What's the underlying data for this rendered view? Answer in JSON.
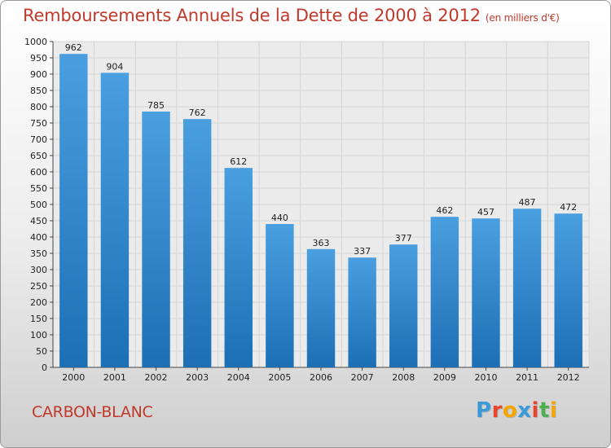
{
  "chart_data": {
    "type": "bar",
    "title": "Remboursements Annuels de la Dette de 2000 à 2012",
    "subtitle": "(en milliers d'€)",
    "categories": [
      "2000",
      "2001",
      "2002",
      "2003",
      "2004",
      "2005",
      "2006",
      "2007",
      "2008",
      "2009",
      "2010",
      "2011",
      "2012"
    ],
    "values": [
      962,
      904,
      785,
      762,
      612,
      440,
      363,
      337,
      377,
      462,
      457,
      487,
      472
    ],
    "ylim": [
      0,
      1000
    ],
    "yticks": [
      0,
      50,
      100,
      150,
      200,
      250,
      300,
      350,
      400,
      450,
      500,
      550,
      600,
      650,
      700,
      750,
      800,
      850,
      900,
      950,
      1000
    ],
    "grid": true,
    "bar_color": "#4a9fe0",
    "bar_color_dark": "#1d6fb5"
  },
  "footer": {
    "commune": "CARBON-BLANC",
    "logo": [
      "P",
      "r",
      "o",
      "x",
      "i",
      "t",
      "i"
    ],
    "logo_colors": [
      "#3a9ad9",
      "#e8462c",
      "#f7a600",
      "#3a9ad9",
      "#e8462c",
      "#4caf50",
      "#f7a600"
    ]
  },
  "colors": {
    "accent": "#c0392b"
  }
}
